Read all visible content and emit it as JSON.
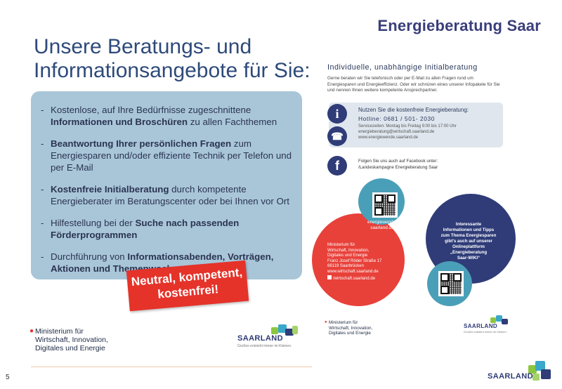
{
  "header": {
    "title": "Energieberatung Saar"
  },
  "left": {
    "heading_line1": "Unsere Beratungs- und",
    "heading_line2": "Informationsangebote für Sie:",
    "bullets": [
      {
        "a": "Kostenlose, auf Ihre Bedürfnisse zugeschnittene ",
        "b": "Informationen und Broschüren",
        "c": " zu allen Fachthemen"
      },
      {
        "a": "",
        "b": "Beantwortung Ihrer persönlichen Fragen",
        "c": " zum Energiesparen und/oder effiziente Technik per Telefon und per E-Mail"
      },
      {
        "a": "",
        "b": "Kostenfreie Initialberatung",
        "c": " durch kompetente Energieberater im Beratungscenter oder bei Ihnen vor Ort"
      },
      {
        "a": "Hilfestellung bei der ",
        "b": "Suche nach passenden Förderprogrammen",
        "c": ""
      },
      {
        "a": "Durchführung von ",
        "b": "Informationsabenden, Vorträgen, Aktionen und Themenwochen",
        "c": ""
      }
    ],
    "banner_line1": "Neutral, kompetent,",
    "banner_line2": "kostenfrei!",
    "ministry_line1": "Ministerium für",
    "ministry_line2": "Wirtschaft, Innovation,",
    "ministry_line3": "Digitales und Energie",
    "saarland_logo": "SAARLAND",
    "saarland_tagline": "Großes entsteht immer im Kleinen."
  },
  "right": {
    "heading": "Individuelle, unabhängige Initialberatung",
    "intro": "Gerne beraten wir Sie telefonisch oder per E-Mail zu allen Fragen rund um Energiesparen und Energieeffizienz. Oder wir schnüren eines unserer Infopakete für Sie und nennen Ihnen weitere kompetente Ansprechpartner.",
    "info_title": "Nutzen Sie die kostenfreie Energieberatung:",
    "hotline": "Hotline: 0681 / 501- 2030",
    "service_times": "Servicezeiten: Montag bis Freitag 9:00 bis 17:00 Uhr",
    "email": "energieberatung@wirtschaft.saarland.de",
    "web": "www.energiewende.saarland.de",
    "facebook_line1": "Folgen Sie uns auch auf Facebook unter:",
    "facebook_line2": "/Landeskampagne Energieberatung Saar",
    "teal_circle_line1": "energiewende.",
    "teal_circle_line2": "saarland.de",
    "red_circle": [
      "Ministerium für",
      "Wirtschaft, Innovation,",
      "Digitales und Energie",
      "Franz Josef Röder Straße 17",
      "66119 Saarbrücken",
      "www.wirtschaft.saarland.de",
      "/wirtschaft.saarland.de"
    ],
    "navy_circle": [
      "Interessante",
      "Informationen und Tipps",
      "zum Thema Energiesparen",
      "gibt's auch auf unserer",
      "Onlineplattform",
      "„Energieberatung",
      "Saar-WIKI“"
    ],
    "ministry_line1": "Ministerium für",
    "ministry_line2": "Wirtschaft, Innovation,",
    "ministry_line3": "Digitales und Energie",
    "saarland_logo": "SAARLAND",
    "saarland_tagline": "Großes entsteht immer im Kleinen."
  },
  "footer": {
    "page_number": "5",
    "saarland_logo": "SAARLAND"
  },
  "colors": {
    "navy": "#2f3c78",
    "red": "#e5332a",
    "teal": "#4a9fb8",
    "panel": "#a9c6d9"
  }
}
